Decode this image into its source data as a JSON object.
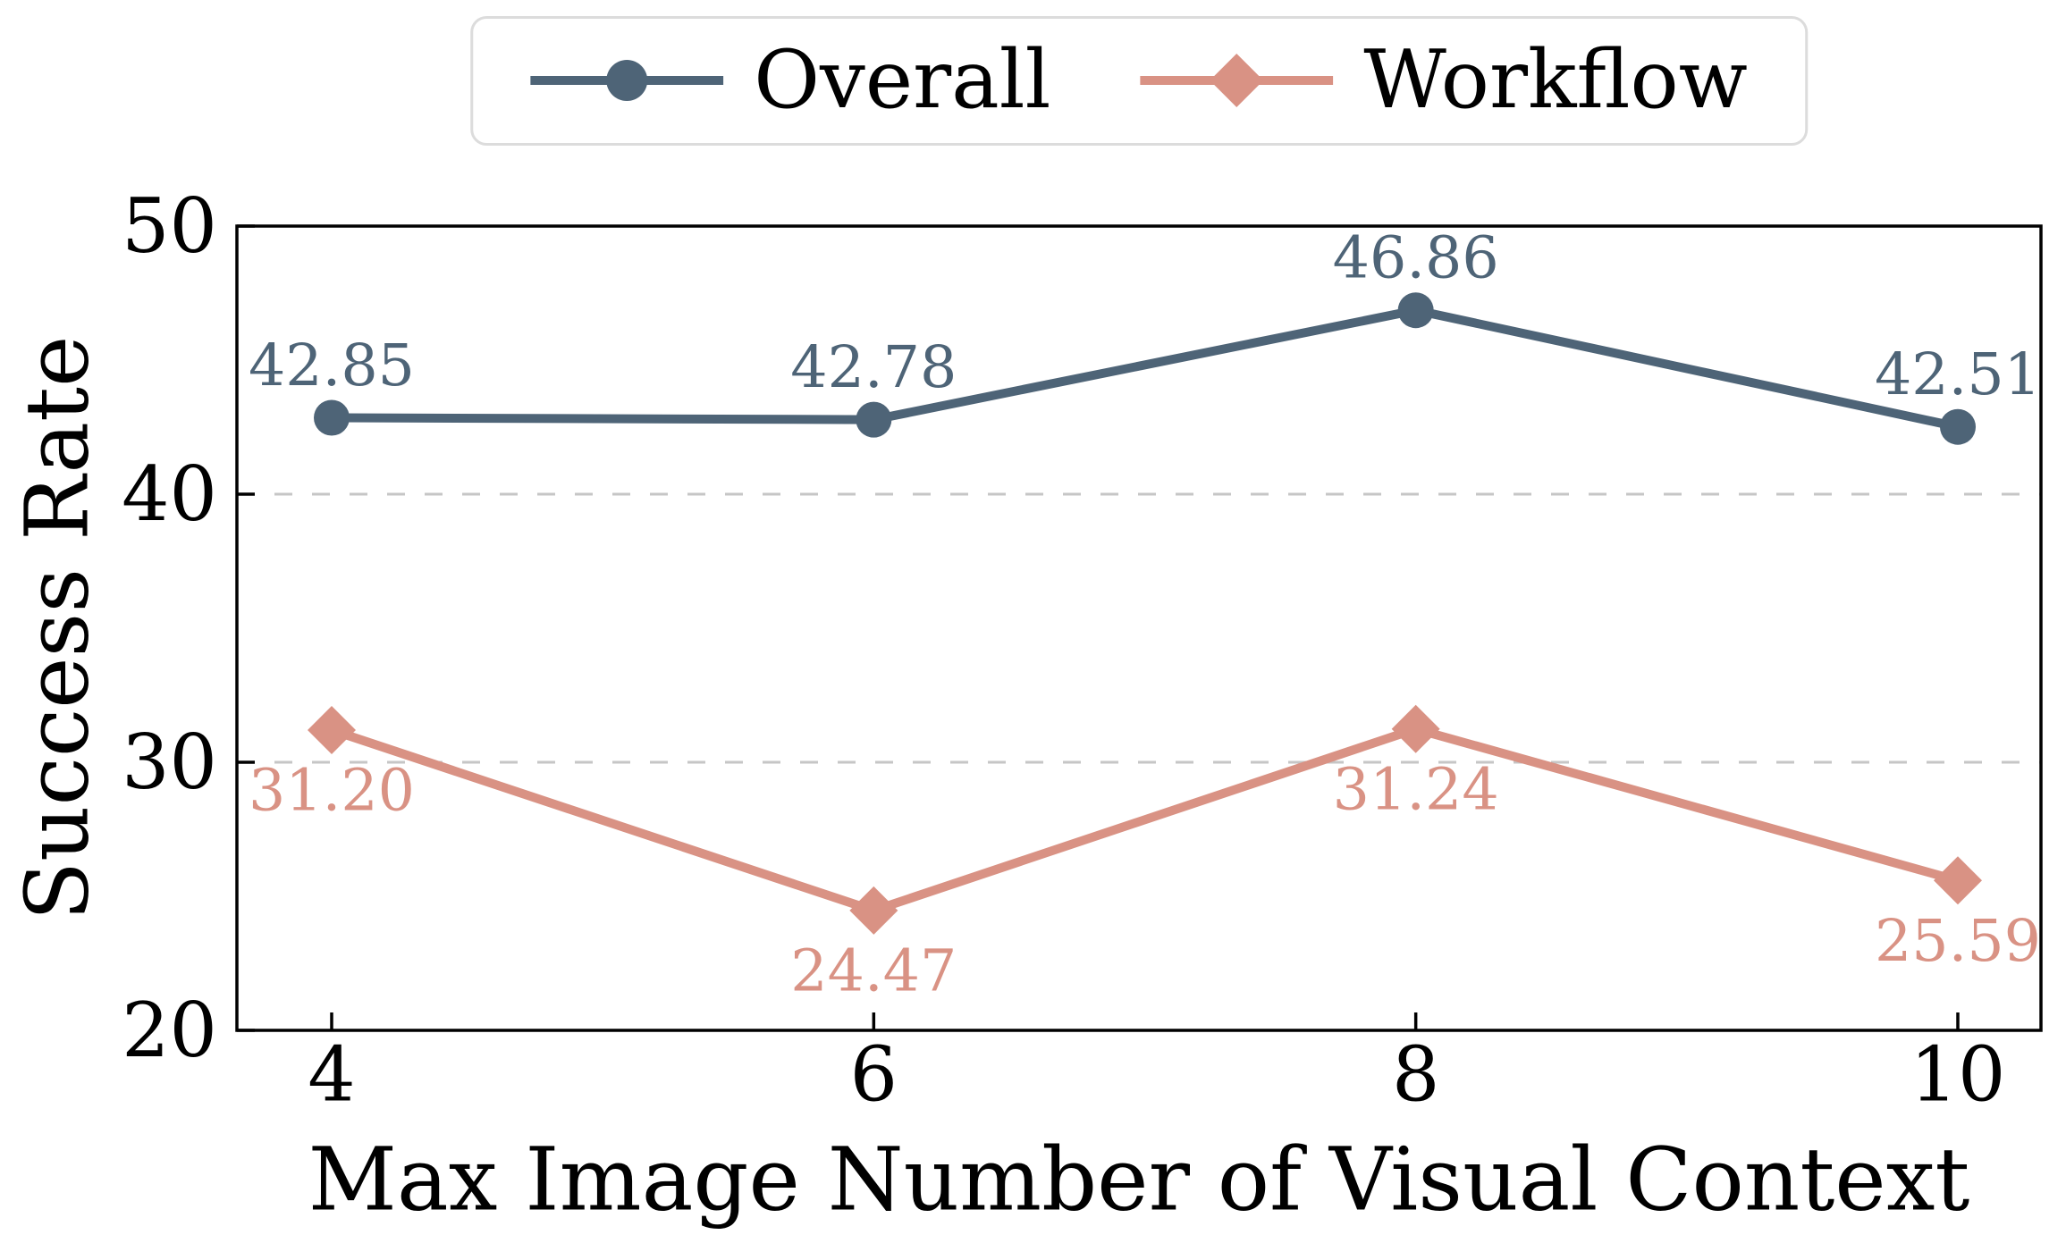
{
  "chart_data": {
    "type": "line",
    "title": "",
    "xlabel": "Max Image Number of Visual Context",
    "ylabel": "Success Rate",
    "x": [
      4,
      6,
      8,
      10
    ],
    "xticks": [
      "4",
      "6",
      "8",
      "10"
    ],
    "yticks": [
      "20",
      "30",
      "40",
      "50"
    ],
    "ylim": [
      20,
      50
    ],
    "xlim_ticks": [
      4,
      10
    ],
    "grid_y": [
      30,
      40
    ],
    "grid_style": "dashed",
    "legend_position": "top center",
    "series": [
      {
        "name": "Overall",
        "color": "#4E6477",
        "marker": "circle",
        "values": [
          42.85,
          42.78,
          46.86,
          42.51
        ],
        "labels": [
          "42.85",
          "42.78",
          "46.86",
          "42.51"
        ],
        "label_placement": "above"
      },
      {
        "name": "Workflow",
        "color": "#D99284",
        "marker": "diamond",
        "values": [
          31.2,
          24.47,
          31.24,
          25.59
        ],
        "labels": [
          "31.20",
          "24.47",
          "31.24",
          "25.59"
        ],
        "label_placement": "below"
      }
    ]
  },
  "style": {
    "axis_color": "#000000",
    "grid_color": "#c6c6c6",
    "legend_border_color": "#dcdcdc",
    "background": "#ffffff"
  }
}
